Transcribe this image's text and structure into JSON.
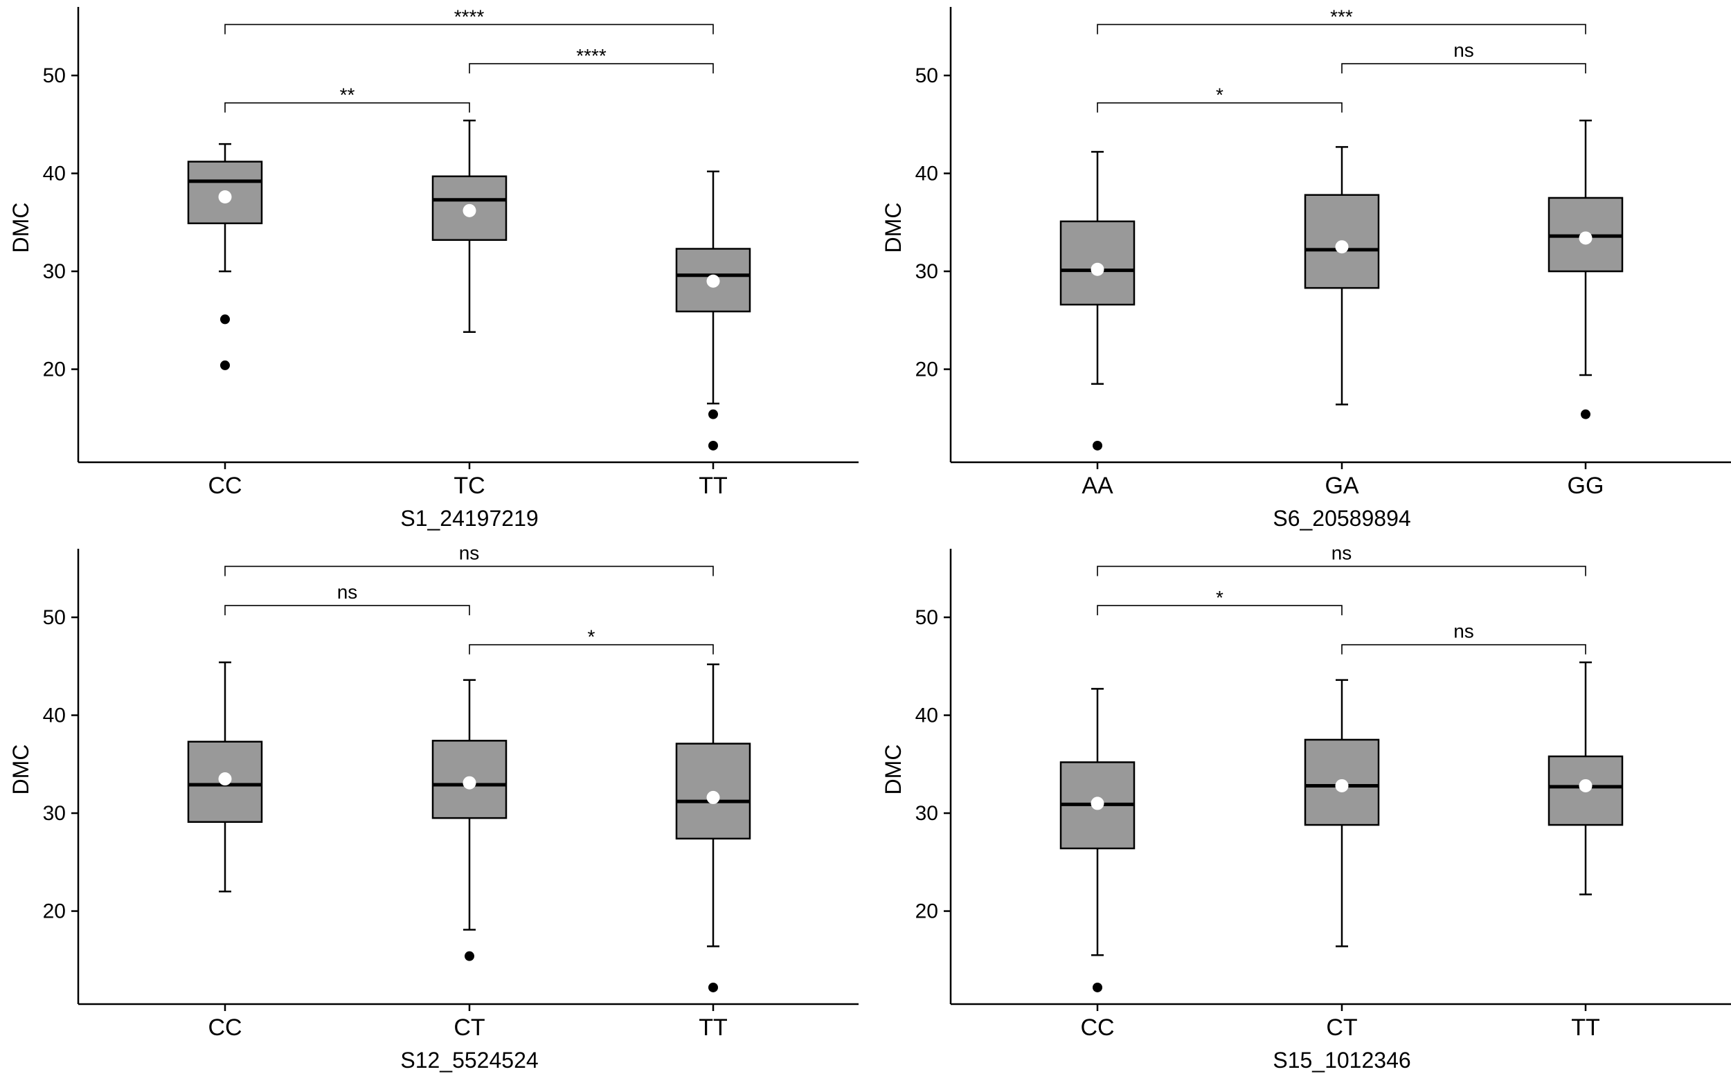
{
  "chart_data": [
    {
      "type": "box",
      "position": "top-left",
      "xlabel": "S1_24197219",
      "ylabel": "DMC",
      "ylim": [
        10.5,
        57
      ],
      "yticks": [
        20,
        30,
        40,
        50
      ],
      "categories": [
        "CC",
        "TC",
        "TT"
      ],
      "boxes": [
        {
          "category": "CC",
          "whisker_low": 30.0,
          "q1": 34.9,
          "median": 39.2,
          "q3": 41.2,
          "whisker_high": 43.0,
          "mean": 37.6,
          "outliers": [
            25.1,
            20.4
          ]
        },
        {
          "category": "TC",
          "whisker_low": 23.8,
          "q1": 33.2,
          "median": 37.3,
          "q3": 39.7,
          "whisker_high": 45.4,
          "mean": 36.2,
          "outliers": []
        },
        {
          "category": "TT",
          "whisker_low": 16.5,
          "q1": 25.9,
          "median": 29.6,
          "q3": 32.3,
          "whisker_high": 40.2,
          "mean": 29.0,
          "outliers": [
            15.4,
            12.2
          ]
        }
      ],
      "comparisons": [
        {
          "from": "CC",
          "to": "TT",
          "label": "****",
          "y": 55.2
        },
        {
          "from": "TC",
          "to": "TT",
          "label": "****",
          "y": 51.2
        },
        {
          "from": "CC",
          "to": "TC",
          "label": "**",
          "y": 47.2
        }
      ]
    },
    {
      "type": "box",
      "position": "top-right",
      "xlabel": "S6_20589894",
      "ylabel": "DMC",
      "ylim": [
        10.5,
        57
      ],
      "yticks": [
        20,
        30,
        40,
        50
      ],
      "categories": [
        "AA",
        "GA",
        "GG"
      ],
      "boxes": [
        {
          "category": "AA",
          "whisker_low": 18.5,
          "q1": 26.6,
          "median": 30.1,
          "q3": 35.1,
          "whisker_high": 42.2,
          "mean": 30.2,
          "outliers": [
            12.2
          ]
        },
        {
          "category": "GA",
          "whisker_low": 16.4,
          "q1": 28.3,
          "median": 32.2,
          "q3": 37.8,
          "whisker_high": 42.7,
          "mean": 32.5,
          "outliers": []
        },
        {
          "category": "GG",
          "whisker_low": 19.4,
          "q1": 30.0,
          "median": 33.6,
          "q3": 37.5,
          "whisker_high": 45.4,
          "mean": 33.4,
          "outliers": [
            15.4
          ]
        }
      ],
      "comparisons": [
        {
          "from": "AA",
          "to": "GG",
          "label": "***",
          "y": 55.2
        },
        {
          "from": "GA",
          "to": "GG",
          "label": "ns",
          "y": 51.2
        },
        {
          "from": "AA",
          "to": "GA",
          "label": "*",
          "y": 47.2
        }
      ]
    },
    {
      "type": "box",
      "position": "bottom-left",
      "xlabel": "S12_5524524",
      "ylabel": "DMC",
      "ylim": [
        10.5,
        57
      ],
      "yticks": [
        20,
        30,
        40,
        50
      ],
      "categories": [
        "CC",
        "CT",
        "TT"
      ],
      "boxes": [
        {
          "category": "CC",
          "whisker_low": 22.0,
          "q1": 29.1,
          "median": 32.9,
          "q3": 37.3,
          "whisker_high": 45.4,
          "mean": 33.5,
          "outliers": []
        },
        {
          "category": "CT",
          "whisker_low": 18.1,
          "q1": 29.5,
          "median": 32.9,
          "q3": 37.4,
          "whisker_high": 43.6,
          "mean": 33.1,
          "outliers": [
            15.4
          ]
        },
        {
          "category": "TT",
          "whisker_low": 16.4,
          "q1": 27.4,
          "median": 31.2,
          "q3": 37.1,
          "whisker_high": 45.2,
          "mean": 31.6,
          "outliers": [
            12.2
          ]
        }
      ],
      "comparisons": [
        {
          "from": "CC",
          "to": "TT",
          "label": "ns",
          "y": 55.2
        },
        {
          "from": "CC",
          "to": "CT",
          "label": "ns",
          "y": 51.2
        },
        {
          "from": "CT",
          "to": "TT",
          "label": "*",
          "y": 47.2
        }
      ]
    },
    {
      "type": "box",
      "position": "bottom-right",
      "xlabel": "S15_1012346",
      "ylabel": "DMC",
      "ylim": [
        10.5,
        57
      ],
      "yticks": [
        20,
        30,
        40,
        50
      ],
      "categories": [
        "CC",
        "CT",
        "TT"
      ],
      "boxes": [
        {
          "category": "CC",
          "whisker_low": 15.5,
          "q1": 26.4,
          "median": 30.9,
          "q3": 35.2,
          "whisker_high": 42.7,
          "mean": 31.0,
          "outliers": [
            12.2
          ]
        },
        {
          "category": "CT",
          "whisker_low": 16.4,
          "q1": 28.8,
          "median": 32.8,
          "q3": 37.5,
          "whisker_high": 43.6,
          "mean": 32.8,
          "outliers": []
        },
        {
          "category": "TT",
          "whisker_low": 21.7,
          "q1": 28.8,
          "median": 32.7,
          "q3": 35.8,
          "whisker_high": 45.4,
          "mean": 32.8,
          "outliers": []
        }
      ],
      "comparisons": [
        {
          "from": "CC",
          "to": "TT",
          "label": "ns",
          "y": 55.2
        },
        {
          "from": "CC",
          "to": "CT",
          "label": "*",
          "y": 51.2
        },
        {
          "from": "CT",
          "to": "TT",
          "label": "ns",
          "y": 47.2
        }
      ]
    }
  ],
  "colors": {
    "box_fill": "#999999",
    "line": "#000000",
    "mean_point": "#ffffff",
    "outlier": "#000000"
  }
}
